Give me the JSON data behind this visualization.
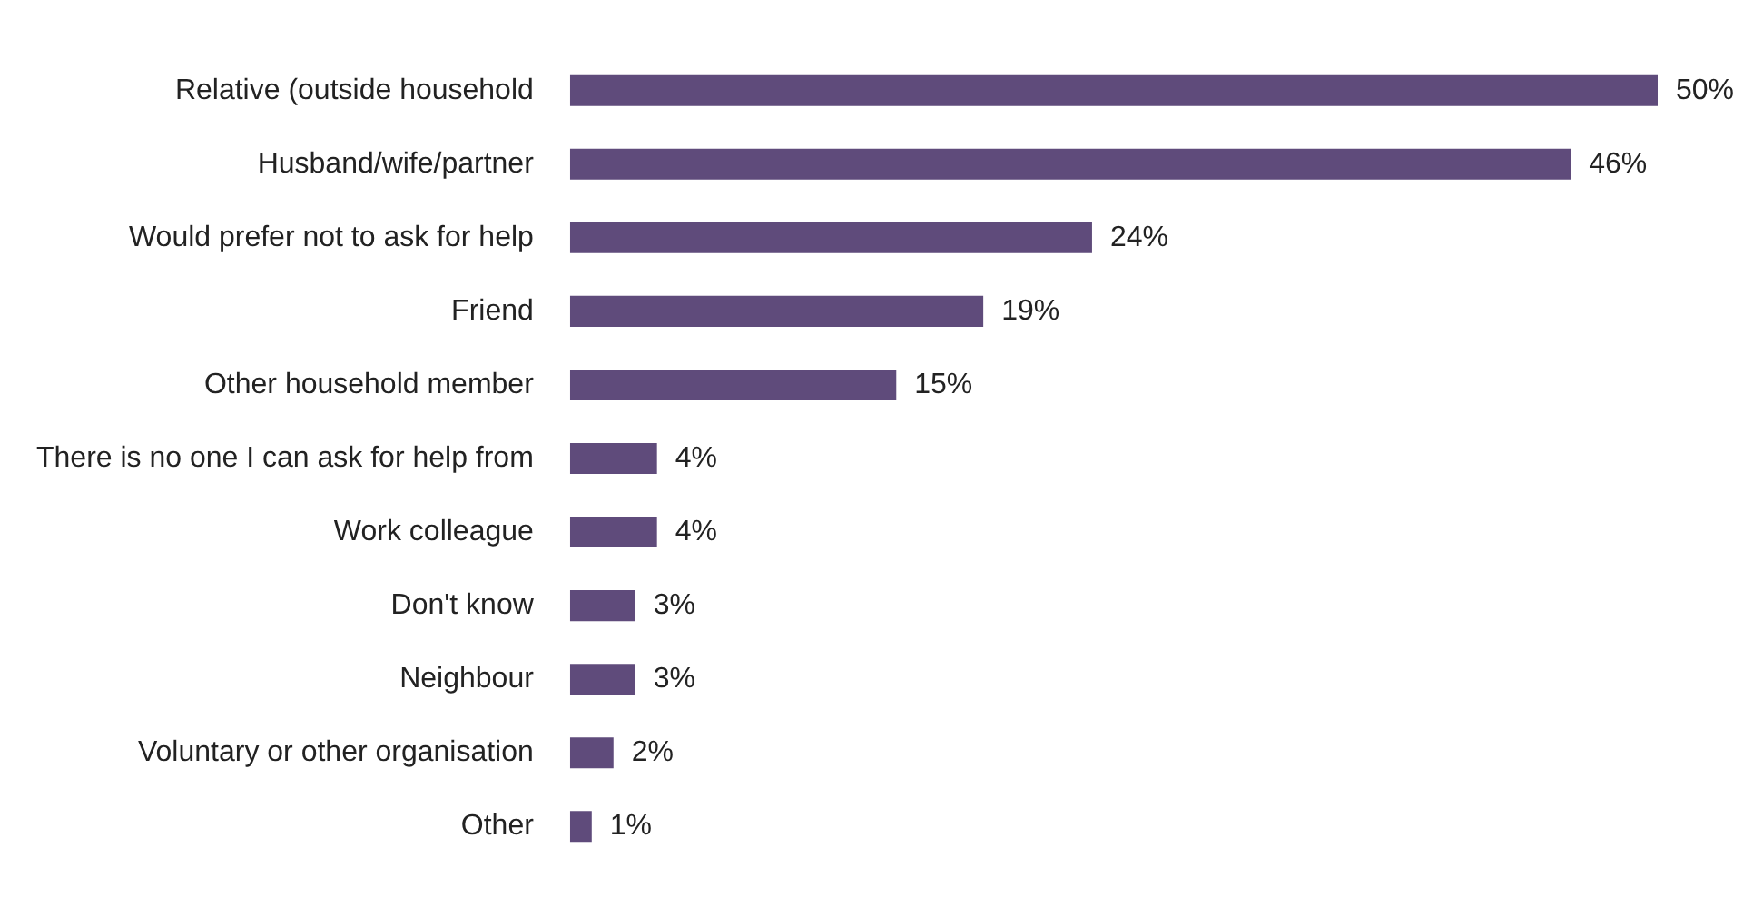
{
  "chart_data": {
    "type": "bar",
    "orientation": "horizontal",
    "categories": [
      "Relative (outside household",
      "Husband/wife/partner",
      "Would prefer not to ask for help",
      "Friend",
      "Other household member",
      "There is no one I can ask for help from",
      "Work colleague",
      "Don't know",
      "Neighbour",
      "Voluntary or other organisation",
      "Other"
    ],
    "values": [
      50,
      46,
      24,
      19,
      15,
      4,
      4,
      3,
      3,
      2,
      1
    ],
    "value_labels": [
      "50%",
      "46%",
      "24%",
      "19%",
      "15%",
      "4%",
      "4%",
      "3%",
      "3%",
      "2%",
      "1%"
    ],
    "color": "#5f4b7b"
  }
}
